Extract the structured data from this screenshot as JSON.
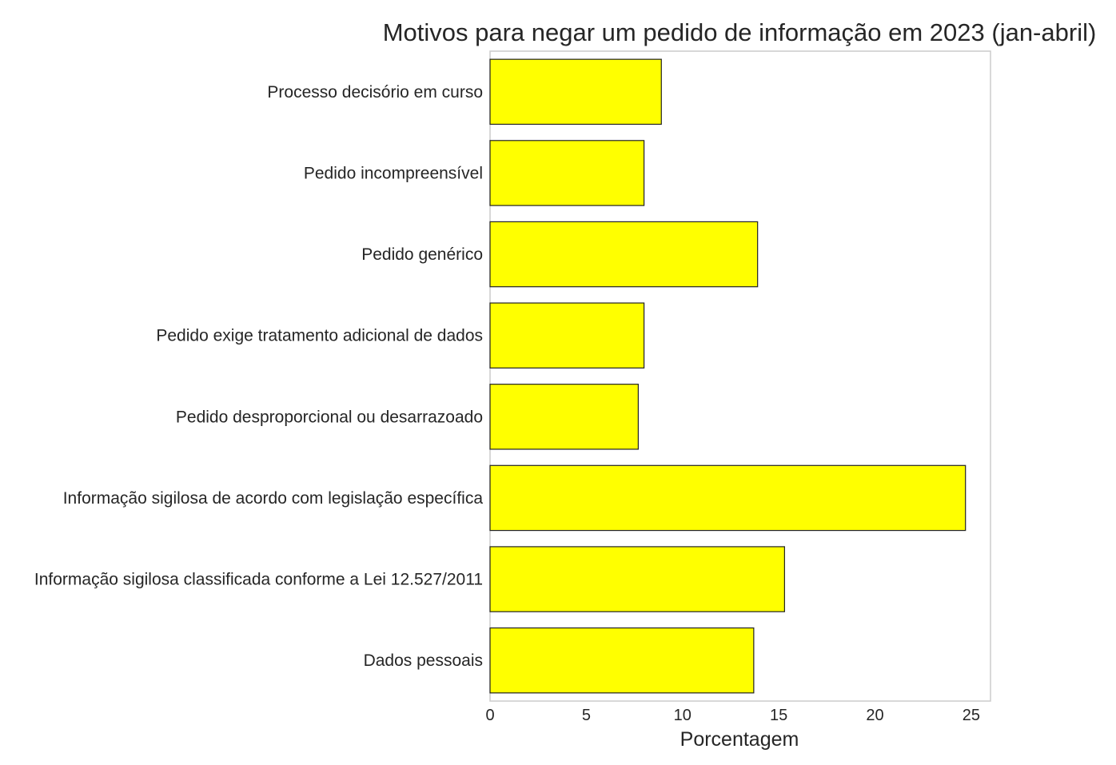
{
  "chart_data": {
    "type": "bar",
    "orientation": "horizontal",
    "title": "Motivos para negar um pedido de informação em 2023 (jan-abril)",
    "xlabel": "Porcentagem",
    "ylabel": "",
    "categories": [
      "Processo decisório em curso",
      "Pedido incompreensível",
      "Pedido genérico",
      "Pedido exige tratamento adicional de dados",
      "Pedido desproporcional ou desarrazoado",
      "Informação sigilosa de acordo com legislação específica",
      "Informação sigilosa classificada conforme a Lei 12.527/2011",
      "Dados pessoais"
    ],
    "values": [
      8.9,
      8.0,
      13.9,
      8.0,
      7.7,
      24.7,
      15.3,
      13.7
    ],
    "xlim": [
      0,
      26
    ],
    "xticks": [
      "0",
      "5",
      "10",
      "15",
      "20",
      "25"
    ],
    "xtick_values": [
      0,
      5,
      10,
      15,
      20,
      25
    ],
    "grid": false,
    "bar_color": "#ffff00",
    "bar_edge_color": "#222222",
    "frame_color": "#cccccc"
  }
}
